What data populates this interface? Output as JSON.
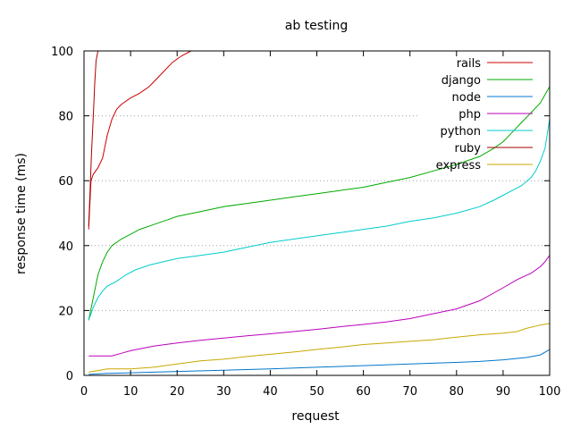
{
  "chart_data": {
    "type": "line",
    "title": "ab testing",
    "xlabel": "request",
    "ylabel": "response time (ms)",
    "xlim": [
      0,
      100
    ],
    "ylim": [
      0,
      100
    ],
    "x_ticks": [
      0,
      10,
      20,
      30,
      40,
      50,
      60,
      70,
      80,
      90,
      100
    ],
    "y_ticks": [
      0,
      20,
      40,
      60,
      80,
      100
    ],
    "grid": "horizontal dotted",
    "legend_placement": "top-right",
    "series": [
      {
        "name": "rails",
        "color": "#cc0000",
        "points": [
          [
            1,
            45
          ],
          [
            1.5,
            60
          ],
          [
            2,
            62
          ],
          [
            3,
            64
          ],
          [
            4,
            67
          ],
          [
            5,
            74
          ],
          [
            6,
            79
          ],
          [
            7,
            82
          ],
          [
            8,
            83.5
          ],
          [
            10,
            85.5
          ],
          [
            12,
            87
          ],
          [
            14,
            89
          ],
          [
            15,
            90.5
          ],
          [
            17,
            93.5
          ],
          [
            19,
            96.5
          ],
          [
            21,
            98.5
          ],
          [
            23,
            100
          ]
        ]
      },
      {
        "name": "django",
        "color": "#00aa00",
        "points": [
          [
            1,
            17
          ],
          [
            2,
            24
          ],
          [
            3,
            31
          ],
          [
            4,
            35
          ],
          [
            5,
            38
          ],
          [
            6,
            40
          ],
          [
            8,
            42
          ],
          [
            10,
            43.5
          ],
          [
            12,
            45
          ],
          [
            15,
            46.5
          ],
          [
            18,
            48
          ],
          [
            20,
            49
          ],
          [
            25,
            50.5
          ],
          [
            30,
            52
          ],
          [
            35,
            53
          ],
          [
            40,
            54
          ],
          [
            45,
            55
          ],
          [
            50,
            56
          ],
          [
            55,
            57
          ],
          [
            60,
            58
          ],
          [
            65,
            59.5
          ],
          [
            70,
            61
          ],
          [
            75,
            63
          ],
          [
            80,
            65
          ],
          [
            85,
            67.5
          ],
          [
            88,
            70
          ],
          [
            90,
            72
          ],
          [
            92,
            75
          ],
          [
            94,
            78
          ],
          [
            96,
            81
          ],
          [
            98,
            84
          ],
          [
            100,
            89
          ]
        ]
      },
      {
        "name": "node",
        "color": "#0077cc",
        "points": [
          [
            1,
            0.3
          ],
          [
            5,
            0.6
          ],
          [
            10,
            0.8
          ],
          [
            15,
            1.0
          ],
          [
            20,
            1.2
          ],
          [
            30,
            1.6
          ],
          [
            40,
            2.0
          ],
          [
            50,
            2.5
          ],
          [
            60,
            3.0
          ],
          [
            70,
            3.5
          ],
          [
            80,
            4.0
          ],
          [
            85,
            4.3
          ],
          [
            90,
            4.8
          ],
          [
            95,
            5.5
          ],
          [
            98,
            6.3
          ],
          [
            100,
            8
          ]
        ]
      },
      {
        "name": "php",
        "color": "#bb00bb",
        "points": [
          [
            1,
            6
          ],
          [
            3,
            6
          ],
          [
            6,
            6
          ],
          [
            8,
            6.8
          ],
          [
            10,
            7.6
          ],
          [
            15,
            9
          ],
          [
            20,
            10
          ],
          [
            25,
            10.8
          ],
          [
            30,
            11.5
          ],
          [
            35,
            12.2
          ],
          [
            40,
            12.8
          ],
          [
            45,
            13.5
          ],
          [
            50,
            14.2
          ],
          [
            55,
            15
          ],
          [
            60,
            15.7
          ],
          [
            65,
            16.5
          ],
          [
            70,
            17.5
          ],
          [
            75,
            19
          ],
          [
            80,
            20.5
          ],
          [
            85,
            23
          ],
          [
            90,
            27
          ],
          [
            93,
            29.5
          ],
          [
            96,
            31.5
          ],
          [
            98,
            33.5
          ],
          [
            99,
            35
          ],
          [
            100,
            37
          ]
        ]
      },
      {
        "name": "python",
        "color": "#00cccc",
        "points": [
          [
            1,
            17
          ],
          [
            2,
            21
          ],
          [
            3,
            24
          ],
          [
            4,
            26
          ],
          [
            5,
            27.5
          ],
          [
            7,
            29
          ],
          [
            9,
            31
          ],
          [
            11,
            32.5
          ],
          [
            14,
            34
          ],
          [
            17,
            35
          ],
          [
            20,
            36
          ],
          [
            25,
            37
          ],
          [
            30,
            38
          ],
          [
            35,
            39.5
          ],
          [
            40,
            41
          ],
          [
            45,
            42
          ],
          [
            50,
            43
          ],
          [
            55,
            44
          ],
          [
            60,
            45
          ],
          [
            65,
            46
          ],
          [
            70,
            47.5
          ],
          [
            75,
            48.5
          ],
          [
            80,
            50
          ],
          [
            85,
            52
          ],
          [
            88,
            54
          ],
          [
            90,
            55.5
          ],
          [
            92,
            57
          ],
          [
            94,
            58.5
          ],
          [
            96,
            61
          ],
          [
            97,
            63
          ],
          [
            98,
            66
          ],
          [
            99,
            70
          ],
          [
            100,
            79
          ]
        ]
      },
      {
        "name": "ruby",
        "color": "#aa0000",
        "points": [
          [
            1,
            46
          ],
          [
            1.3,
            57
          ],
          [
            1.6,
            68
          ],
          [
            2,
            80
          ],
          [
            2.3,
            90
          ],
          [
            2.6,
            97
          ],
          [
            3,
            100
          ]
        ]
      },
      {
        "name": "express",
        "color": "#c8a800",
        "points": [
          [
            1,
            1
          ],
          [
            3,
            1.5
          ],
          [
            5,
            2
          ],
          [
            10,
            2
          ],
          [
            15,
            2.5
          ],
          [
            20,
            3.5
          ],
          [
            25,
            4.5
          ],
          [
            30,
            5
          ],
          [
            35,
            5.8
          ],
          [
            40,
            6.5
          ],
          [
            45,
            7.2
          ],
          [
            50,
            8
          ],
          [
            55,
            8.7
          ],
          [
            60,
            9.5
          ],
          [
            65,
            10
          ],
          [
            70,
            10.5
          ],
          [
            75,
            11
          ],
          [
            80,
            11.8
          ],
          [
            85,
            12.5
          ],
          [
            90,
            13
          ],
          [
            93,
            13.5
          ],
          [
            95,
            14.5
          ],
          [
            98,
            15.5
          ],
          [
            100,
            16
          ]
        ]
      }
    ]
  }
}
